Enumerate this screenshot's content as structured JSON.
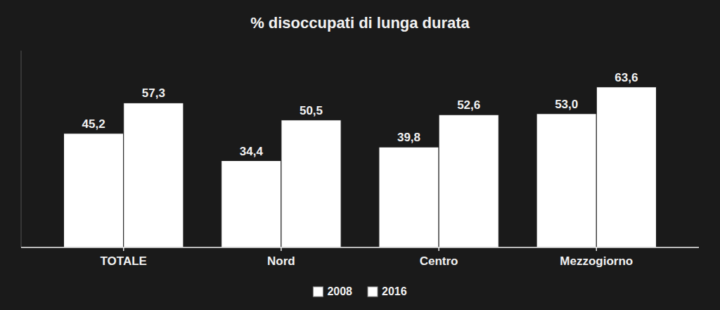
{
  "chart_data": {
    "type": "bar",
    "title": "% disoccupati di lunga durata",
    "categories": [
      "TOTALE",
      "Nord",
      "Centro",
      "Mezzogiorno"
    ],
    "series": [
      {
        "name": "2008",
        "color": "#ffffff",
        "values": [
          45.2,
          34.4,
          39.8,
          53.0
        ],
        "value_labels": [
          "45,2",
          "34,4",
          "39,8",
          "53,0"
        ]
      },
      {
        "name": "2016",
        "color": "#ffffff",
        "values": [
          57.3,
          50.5,
          52.6,
          63.6
        ],
        "value_labels": [
          "57,3",
          "50,5",
          "52,6",
          "63,6"
        ]
      }
    ],
    "ylim": [
      0,
      78
    ],
    "data_labels": true,
    "tick_labels": "x",
    "grid": false,
    "legend": "bottom"
  }
}
